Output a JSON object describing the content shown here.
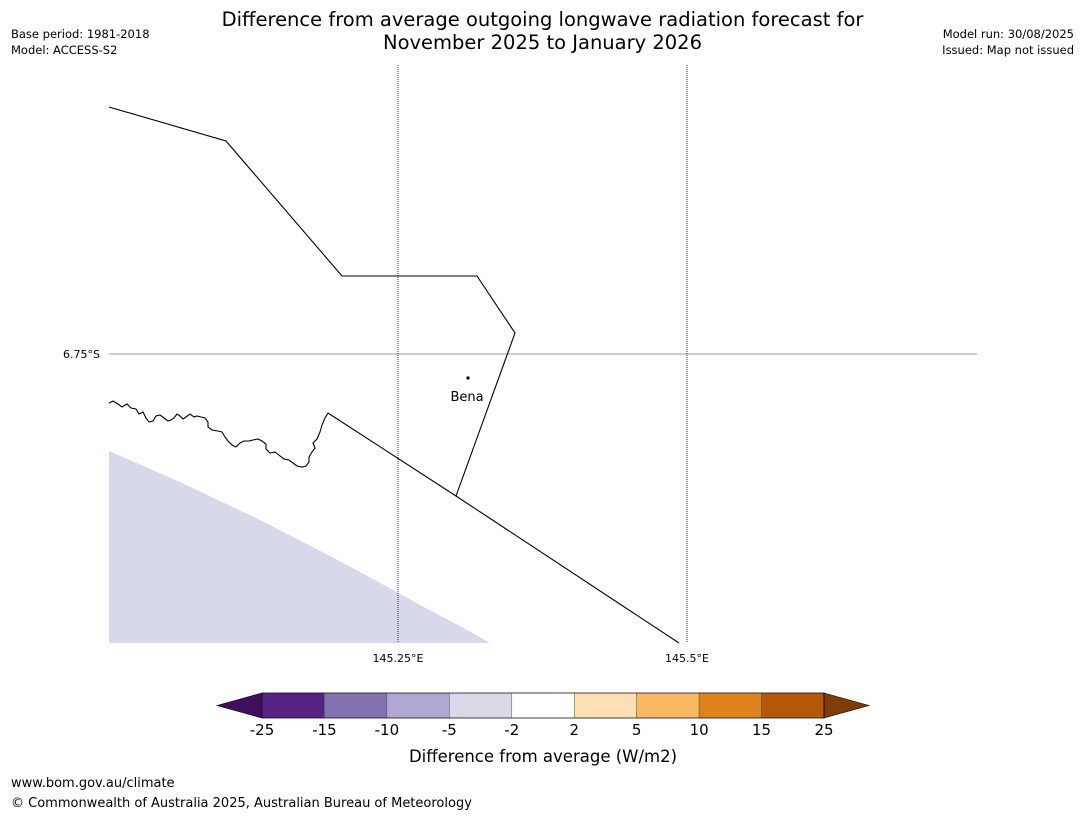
{
  "header": {
    "title_line1": "Difference from average outgoing longwave radiation forecast for",
    "title_line2": "November 2025 to January 2026",
    "base_period": "Base period: 1981-2018",
    "model": "Model: ACCESS-S2",
    "model_run": "Model run: 30/08/2025",
    "issued": "Issued: Map not issued"
  },
  "map": {
    "lat_label": "6.75°S",
    "lon_labels": [
      "145.25°E",
      "145.5°E"
    ],
    "place_name": "Bena",
    "shaded_anomaly_class": "-5 to -2"
  },
  "legend": {
    "title": "Difference from average (W/m2)",
    "ticks": [
      "-25",
      "-15",
      "-10",
      "-5",
      "-2",
      "2",
      "5",
      "10",
      "15",
      "25"
    ],
    "colors": [
      "#3f0f5e",
      "#562285",
      "#8372b0",
      "#b0a8d2",
      "#d9d9ea",
      "#ffffff",
      "#fddfb4",
      "#fbb862",
      "#e0821a",
      "#b45708",
      "#7f3c0b"
    ]
  },
  "footer": {
    "url": "www.bom.gov.au/climate",
    "copyright": "© Commonwealth of Australia 2025, Australian Bureau of Meteorology"
  }
}
